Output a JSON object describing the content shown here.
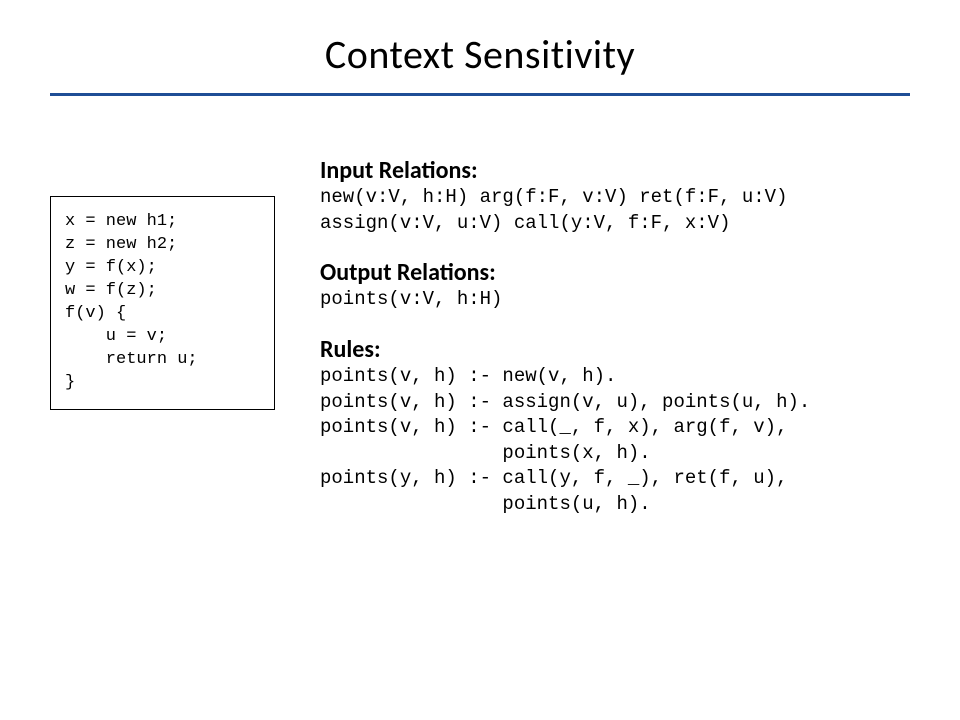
{
  "title": "Context Sensitivity",
  "colors": {
    "rule": "#1f4e96",
    "background": "#ffffff",
    "text": "#000000"
  },
  "typography": {
    "title_fontsize": 40,
    "section_head_fontsize": 24,
    "mono_fontsize": 19,
    "codebox_fontsize": 17,
    "title_family": "Calibri",
    "mono_family": "Courier New"
  },
  "codebox": "x = new h1;\nz = new h2;\ny = f(x);\nw = f(z);\nf(v) {\n    u = v;\n    return u;\n}",
  "sections": {
    "input": {
      "heading": "Input Relations:",
      "body": "new(v:V, h:H) arg(f:F, v:V) ret(f:F, u:V)\nassign(v:V, u:V) call(y:V, f:F, x:V)"
    },
    "output": {
      "heading": "Output Relations:",
      "body": "points(v:V, h:H)"
    },
    "rules": {
      "heading": "Rules:",
      "body": "points(v, h) :- new(v, h).\npoints(v, h) :- assign(v, u), points(u, h).\npoints(v, h) :- call(_, f, x), arg(f, v),\n                points(x, h).\npoints(y, h) :- call(y, f, _), ret(f, u),\n                points(u, h)."
    }
  }
}
